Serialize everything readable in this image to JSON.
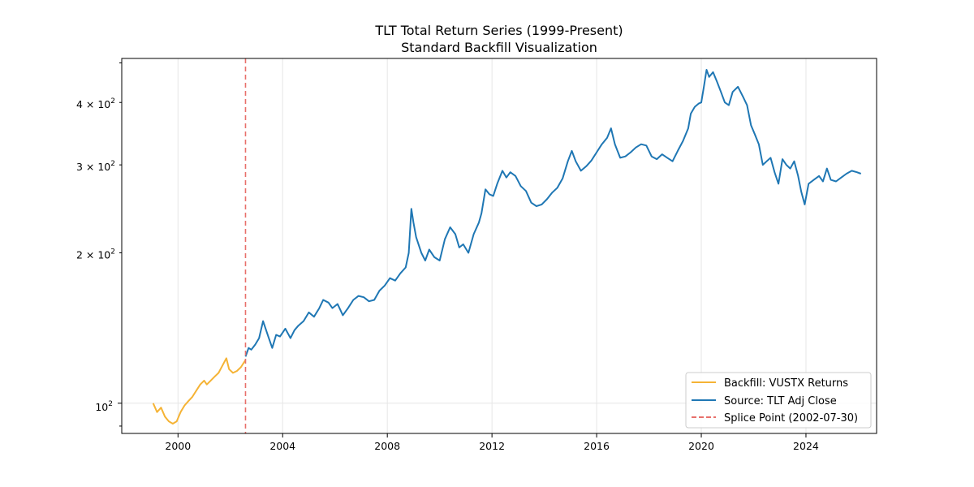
{
  "chart_data": {
    "type": "line",
    "title": "TLT Total Return Series (1999-Present)",
    "subtitle": "Standard Backfill Visualization",
    "xlabel": "",
    "ylabel": "",
    "y_scale": "log",
    "xlim": [
      1997.85,
      2026.7
    ],
    "ylim": [
      87,
      490
    ],
    "grid": true,
    "x_ticks": [
      {
        "value": 2000,
        "label": "2000"
      },
      {
        "value": 2004,
        "label": "2004"
      },
      {
        "value": 2008,
        "label": "2008"
      },
      {
        "value": 2012,
        "label": "2012"
      },
      {
        "value": 2016,
        "label": "2016"
      },
      {
        "value": 2020,
        "label": "2020"
      },
      {
        "value": 2024,
        "label": "2024"
      }
    ],
    "y_major_ticks": [
      {
        "value": 100,
        "base": "10",
        "exp": "2"
      }
    ],
    "y_minor_ticks": [
      {
        "value": 90,
        "label": ""
      },
      {
        "value": 200,
        "mantissa": "2",
        "base": "10",
        "exp": "2"
      },
      {
        "value": 300,
        "mantissa": "3",
        "base": "10",
        "exp": "2"
      },
      {
        "value": 400,
        "mantissa": "4",
        "base": "10",
        "exp": "2"
      },
      {
        "value": 480,
        "label": ""
      }
    ],
    "series": [
      {
        "name": "Backfill: VUSTX Returns",
        "color": "#f5b335",
        "x": [
          1999.05,
          1999.2,
          1999.35,
          1999.5,
          1999.65,
          1999.8,
          1999.95,
          2000.1,
          2000.25,
          2000.4,
          2000.55,
          2000.7,
          2000.85,
          2001.0,
          2001.1,
          2001.25,
          2001.4,
          2001.55,
          2001.7,
          2001.85,
          2001.95,
          2002.1,
          2002.25,
          2002.4,
          2002.58
        ],
        "y": [
          100,
          96,
          98,
          94,
          92,
          91,
          92,
          96,
          99,
          101,
          103,
          106,
          109,
          111,
          109,
          111,
          113,
          115,
          119,
          123,
          117,
          115,
          116,
          118,
          122
        ]
      },
      {
        "name": "Source: TLT Adj Close",
        "color": "#1f77b4",
        "x": [
          2002.58,
          2002.7,
          2002.8,
          2002.95,
          2003.1,
          2003.25,
          2003.45,
          2003.6,
          2003.75,
          2003.9,
          2004.1,
          2004.3,
          2004.45,
          2004.6,
          2004.8,
          2005.0,
          2005.2,
          2005.4,
          2005.55,
          2005.75,
          2005.9,
          2006.1,
          2006.3,
          2006.5,
          2006.7,
          2006.9,
          2007.1,
          2007.3,
          2007.5,
          2007.7,
          2007.9,
          2008.1,
          2008.3,
          2008.5,
          2008.7,
          2008.82,
          2008.92,
          2009.0,
          2009.1,
          2009.3,
          2009.45,
          2009.6,
          2009.8,
          2010.0,
          2010.2,
          2010.4,
          2010.6,
          2010.75,
          2010.9,
          2011.1,
          2011.3,
          2011.5,
          2011.6,
          2011.75,
          2011.9,
          2012.05,
          2012.2,
          2012.4,
          2012.55,
          2012.7,
          2012.9,
          2013.1,
          2013.3,
          2013.5,
          2013.7,
          2013.9,
          2014.1,
          2014.3,
          2014.5,
          2014.7,
          2014.9,
          2015.05,
          2015.2,
          2015.4,
          2015.6,
          2015.8,
          2016.0,
          2016.2,
          2016.4,
          2016.55,
          2016.7,
          2016.9,
          2017.1,
          2017.3,
          2017.5,
          2017.7,
          2017.9,
          2018.1,
          2018.3,
          2018.5,
          2018.7,
          2018.9,
          2019.1,
          2019.3,
          2019.5,
          2019.6,
          2019.75,
          2019.9,
          2020.0,
          2020.1,
          2020.2,
          2020.3,
          2020.45,
          2020.6,
          2020.75,
          2020.9,
          2021.05,
          2021.2,
          2021.4,
          2021.6,
          2021.75,
          2021.9,
          2022.05,
          2022.2,
          2022.35,
          2022.5,
          2022.65,
          2022.8,
          2022.95,
          2023.1,
          2023.25,
          2023.4,
          2023.55,
          2023.7,
          2023.82,
          2023.95,
          2024.1,
          2024.3,
          2024.5,
          2024.65,
          2024.8,
          2024.95,
          2025.15,
          2025.35,
          2025.55,
          2025.75,
          2025.95,
          2026.1
        ],
        "y": [
          124,
          129,
          128,
          131,
          135,
          146,
          136,
          129,
          137,
          136,
          141,
          135,
          140,
          143,
          146,
          152,
          149,
          155,
          161,
          159,
          155,
          158,
          150,
          155,
          161,
          164,
          163,
          160,
          161,
          168,
          172,
          178,
          176,
          182,
          187,
          200,
          245,
          230,
          215,
          200,
          193,
          203,
          196,
          193,
          213,
          225,
          218,
          205,
          208,
          200,
          218,
          230,
          240,
          268,
          262,
          260,
          275,
          292,
          283,
          290,
          285,
          272,
          266,
          252,
          248,
          250,
          256,
          264,
          270,
          282,
          305,
          320,
          305,
          292,
          298,
          306,
          318,
          330,
          340,
          355,
          330,
          310,
          312,
          318,
          325,
          330,
          328,
          312,
          308,
          315,
          310,
          305,
          320,
          335,
          355,
          380,
          392,
          398,
          400,
          430,
          465,
          450,
          460,
          440,
          420,
          400,
          395,
          420,
          430,
          410,
          395,
          360,
          345,
          330,
          300,
          305,
          310,
          290,
          275,
          308,
          300,
          295,
          305,
          285,
          265,
          250,
          275,
          280,
          285,
          278,
          295,
          280,
          278,
          283,
          288,
          292,
          290,
          288
        ]
      }
    ],
    "vline": {
      "name": "Splice Point (2002-07-30)",
      "x": 2002.58,
      "color": "#e8706b",
      "style": "dashed"
    },
    "legend": {
      "position": "lower-right",
      "entries": [
        {
          "label": "Backfill: VUSTX Returns",
          "color": "#f5b335",
          "style": "solid"
        },
        {
          "label": "Source: TLT Adj Close",
          "color": "#1f77b4",
          "style": "solid"
        },
        {
          "label": "Splice Point (2002-07-30)",
          "color": "#e8706b",
          "style": "dashed"
        }
      ]
    }
  }
}
